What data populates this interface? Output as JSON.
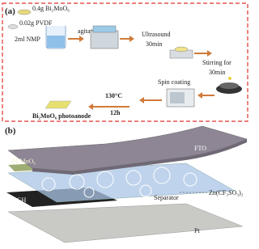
{
  "panel_a": {
    "label": "(a)",
    "steps": {
      "bmo": "0.4g Bi₂MoO₆",
      "pvdf": "0.02g PVDF",
      "nmp": "2ml NMP",
      "agitation": "agitation",
      "ultrasound": "Ultrasound",
      "ultrasound_time": "30min",
      "stirring": "Stirring for",
      "stirring_time": "30min",
      "spin": "Spin coating",
      "temp": "130°C",
      "time": "12h",
      "product": "Bi₂MoO₆ photoanode"
    }
  },
  "panel_b": {
    "label": "(b)",
    "layers": {
      "fto": "FTO",
      "bmo": "Bi₂MoO₆",
      "electrolyte": "Zn(CF₃SO₃)₂",
      "separator": "Separator",
      "rgh": "rGH",
      "pt": "Pt"
    }
  }
}
